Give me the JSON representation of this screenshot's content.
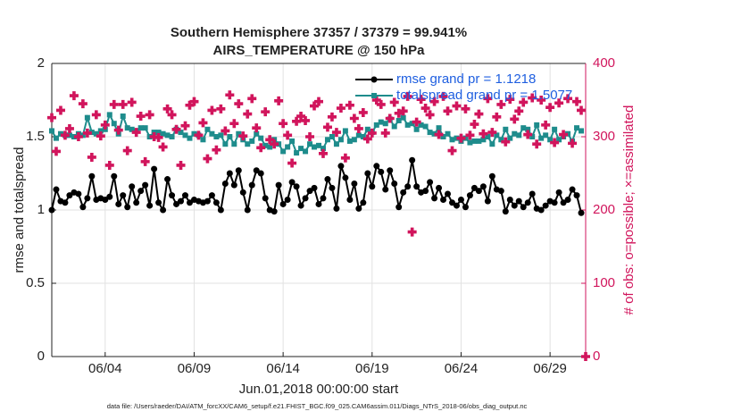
{
  "chart_data": {
    "type": "line",
    "title": [
      "Southern Hemisphere 37357 / 37379 = 99.941%",
      "AIRS_TEMPERATURE @ 150 hPa"
    ],
    "xlabel": "Jun.01,2018 00:00:00 start",
    "ylabel": "rmse and totalspread",
    "y2label": "# of obs: o=possible; ×=assimilated",
    "footnote": "data file: /Users/raeder/DAI/ATM_forcXX/CAM6_setup/f.e21.FHIST_BGC.f09_025.CAM6assim.011/Diags_NTrS_2018-06/obs_diag_output.nc",
    "xlim": [
      1,
      31
    ],
    "xticks": [
      {
        "value": 4,
        "label": "06/04"
      },
      {
        "value": 9,
        "label": "06/09"
      },
      {
        "value": 14,
        "label": "06/14"
      },
      {
        "value": 19,
        "label": "06/19"
      },
      {
        "value": 24,
        "label": "06/24"
      },
      {
        "value": 29,
        "label": "06/29"
      }
    ],
    "ylim": [
      0,
      2
    ],
    "yticks": [
      0,
      0.5,
      1,
      1.5,
      2
    ],
    "y2lim": [
      0,
      400
    ],
    "y2ticks": [
      0,
      100,
      200,
      300,
      400
    ],
    "y2color": "#d1155c",
    "grid": true,
    "legend_color": "#1f5fe0",
    "x": [
      1,
      1.25,
      1.5,
      1.75,
      2,
      2.25,
      2.5,
      2.75,
      3,
      3.25,
      3.5,
      3.75,
      4,
      4.25,
      4.5,
      4.75,
      5,
      5.25,
      5.5,
      5.75,
      6,
      6.25,
      6.5,
      6.75,
      7,
      7.25,
      7.5,
      7.75,
      8,
      8.25,
      8.5,
      8.75,
      9,
      9.25,
      9.5,
      9.75,
      10,
      10.25,
      10.5,
      10.75,
      11,
      11.25,
      11.5,
      11.75,
      12,
      12.25,
      12.5,
      12.75,
      13,
      13.25,
      13.5,
      13.75,
      14,
      14.25,
      14.5,
      14.75,
      15,
      15.25,
      15.5,
      15.75,
      16,
      16.25,
      16.5,
      16.75,
      17,
      17.25,
      17.5,
      17.75,
      18,
      18.25,
      18.5,
      18.75,
      19,
      19.25,
      19.5,
      19.75,
      20,
      20.25,
      20.5,
      20.75,
      21,
      21.25,
      21.5,
      21.75,
      22,
      22.25,
      22.5,
      22.75,
      23,
      23.25,
      23.5,
      23.75,
      24,
      24.25,
      24.5,
      24.75,
      25,
      25.25,
      25.5,
      25.75,
      26,
      26.25,
      26.5,
      26.75,
      27,
      27.25,
      27.5,
      27.75,
      28,
      28.25,
      28.5,
      28.75,
      29,
      29.25,
      29.5,
      29.75,
      30,
      30.25,
      30.5,
      30.75,
      31
    ],
    "series": [
      {
        "name": "rmse grand pr = 1.1218",
        "color": "#000000",
        "marker": "circle",
        "line": true,
        "values": [
          1.0,
          1.14,
          1.06,
          1.05,
          1.1,
          1.12,
          1.11,
          1.02,
          1.08,
          1.23,
          1.07,
          1.08,
          1.07,
          1.09,
          1.23,
          1.04,
          1.1,
          1.02,
          1.16,
          1.05,
          1.13,
          1.17,
          1.03,
          1.28,
          1.05,
          1.0,
          1.21,
          1.1,
          1.04,
          1.06,
          1.1,
          1.05,
          1.07,
          1.06,
          1.05,
          1.06,
          1.1,
          1.05,
          1.0,
          1.18,
          1.25,
          1.17,
          1.27,
          1.12,
          1.0,
          1.17,
          1.27,
          1.25,
          1.08,
          1.0,
          0.99,
          1.17,
          1.04,
          1.07,
          1.19,
          1.16,
          1.03,
          1.08,
          1.13,
          1.15,
          1.04,
          1.08,
          1.21,
          1.15,
          1.01,
          1.3,
          1.22,
          1.07,
          1.18,
          1.01,
          1.05,
          1.25,
          1.16,
          1.3,
          1.26,
          1.14,
          1.27,
          1.18,
          1.02,
          1.12,
          1.16,
          1.34,
          1.16,
          1.12,
          1.13,
          1.19,
          1.08,
          1.15,
          1.07,
          1.11,
          1.05,
          1.03,
          1.07,
          1.02,
          1.1,
          1.15,
          1.13,
          1.16,
          1.06,
          1.23,
          1.14,
          1.13,
          0.99,
          1.07,
          1.03,
          1.06,
          1.02,
          1.05,
          1.11,
          1.01,
          1.0,
          1.03,
          1.06,
          1.05,
          1.12,
          1.05,
          1.07,
          1.14,
          1.1,
          0.98,
          null
        ]
      },
      {
        "name": "totalspread grand pr = 1.5077",
        "color": "#1e8c8c",
        "marker": "square",
        "line": true,
        "values": [
          1.54,
          1.49,
          1.52,
          1.51,
          1.51,
          1.5,
          1.52,
          1.51,
          1.63,
          1.53,
          1.52,
          1.54,
          1.55,
          1.65,
          1.59,
          1.52,
          1.64,
          1.56,
          1.55,
          1.54,
          1.56,
          1.56,
          1.5,
          1.53,
          1.53,
          1.52,
          1.51,
          1.5,
          1.55,
          1.53,
          1.51,
          1.49,
          1.52,
          1.51,
          1.48,
          1.55,
          1.52,
          1.5,
          1.51,
          1.45,
          1.5,
          1.45,
          1.52,
          1.48,
          1.45,
          1.47,
          1.52,
          1.49,
          1.44,
          1.43,
          1.48,
          1.45,
          1.4,
          1.43,
          1.47,
          1.39,
          1.42,
          1.4,
          1.45,
          1.43,
          1.44,
          1.42,
          1.48,
          1.5,
          1.45,
          1.48,
          1.54,
          1.47,
          1.48,
          1.51,
          1.5,
          1.55,
          1.53,
          1.58,
          1.6,
          1.59,
          1.62,
          1.57,
          1.61,
          1.63,
          1.58,
          1.59,
          1.55,
          1.58,
          1.57,
          1.53,
          1.52,
          1.56,
          1.5,
          1.52,
          1.48,
          1.49,
          1.47,
          1.49,
          1.46,
          1.47,
          1.47,
          1.48,
          1.5,
          1.45,
          1.51,
          1.48,
          1.55,
          1.49,
          1.52,
          1.51,
          1.56,
          1.55,
          1.5,
          1.58,
          1.49,
          1.51,
          1.48,
          1.55,
          1.48,
          1.5,
          1.52,
          1.47,
          1.56,
          1.54,
          null
        ]
      },
      {
        "color": "#d1155c",
        "marker": "plus",
        "line": false,
        "axis": "y2",
        "values": [
          326,
          280,
          336,
          302,
          311,
          356,
          300,
          345,
          305,
          272,
          330,
          301,
          316,
          261,
          344,
          309,
          344,
          281,
          347,
          306,
          328,
          266,
          330,
          300,
          299,
          286,
          338,
          330,
          310,
          261,
          315,
          343,
          348,
          302,
          319,
          270,
          336,
          282,
          338,
          308,
          357,
          318,
          345,
          301,
          331,
          352,
          312,
          285,
          334,
          296,
          290,
          349,
          318,
          302,
          264,
          321,
          328,
          322,
          300,
          342,
          348,
          277,
          313,
          327,
          306,
          339,
          271,
          343,
          325,
          311,
          333,
          297,
          305,
          350,
          344,
          305,
          325,
          347,
          332,
          335,
          355,
          170,
          320,
          351,
          339,
          330,
          348,
          303,
          355,
          335,
          281,
          342,
          298,
          338,
          302,
          317,
          331,
          304,
          352,
          306,
          327,
          344,
          293,
          351,
          324,
          335,
          347,
          303,
          353,
          290,
          350,
          316,
          340,
          292,
          346,
          303,
          352,
          291,
          348,
          336,
          0
        ]
      }
    ]
  }
}
